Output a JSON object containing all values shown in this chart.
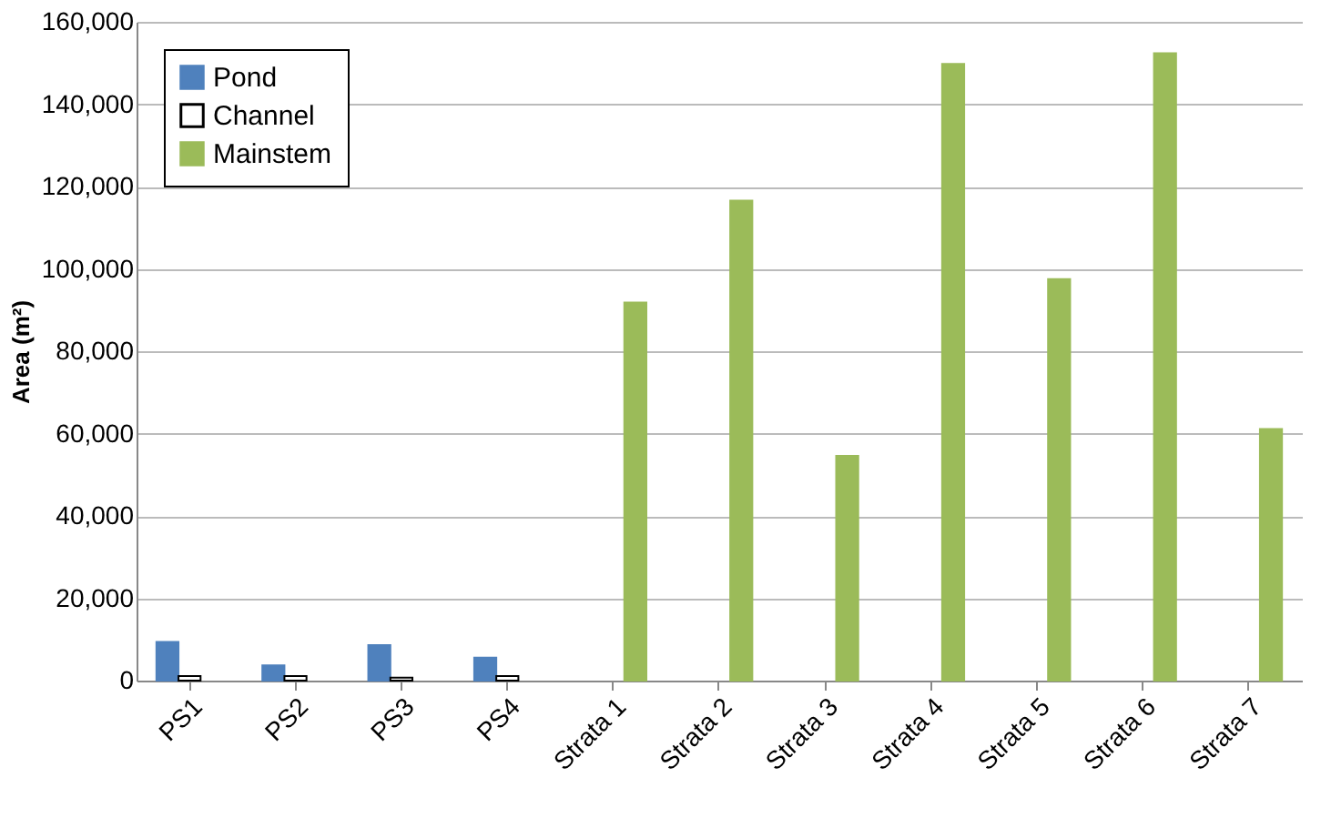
{
  "chart_data": {
    "type": "bar",
    "ylabel": "Area (m²)",
    "categories": [
      "PS1",
      "PS2",
      "PS3",
      "PS4",
      "Strata 1",
      "Strata 2",
      "Strata 3",
      "Strata 4",
      "Strata 5",
      "Strata 6",
      "Strata 7"
    ],
    "series": [
      {
        "name": "Pond",
        "color": "#4f81bd",
        "values": [
          9400,
          3700,
          8600,
          5600,
          null,
          null,
          null,
          null,
          null,
          null,
          null
        ]
      },
      {
        "name": "Channel",
        "color": "#ffffff",
        "values": [
          1100,
          1100,
          700,
          1100,
          null,
          null,
          null,
          null,
          null,
          null,
          null
        ]
      },
      {
        "name": "Mainstem",
        "color": "#9bbb59",
        "values": [
          null,
          null,
          null,
          null,
          91800,
          116600,
          54600,
          149800,
          97500,
          152400,
          61100
        ]
      }
    ],
    "ylim": [
      0,
      160000
    ],
    "yticks": [
      0,
      {
        "value": 20000,
        "label": "20,000"
      },
      {
        "value": 40000,
        "label": "40,000"
      },
      {
        "value": 60000,
        "label": "60,000"
      },
      {
        "value": 80000,
        "label": "80,000"
      },
      {
        "value": 100000,
        "label": "100,000"
      },
      {
        "value": 120000,
        "label": "120,000"
      },
      {
        "value": 140000,
        "label": "140,000"
      },
      {
        "value": 160000,
        "label": "160,000"
      }
    ],
    "grid": "y",
    "legend": "top left"
  }
}
